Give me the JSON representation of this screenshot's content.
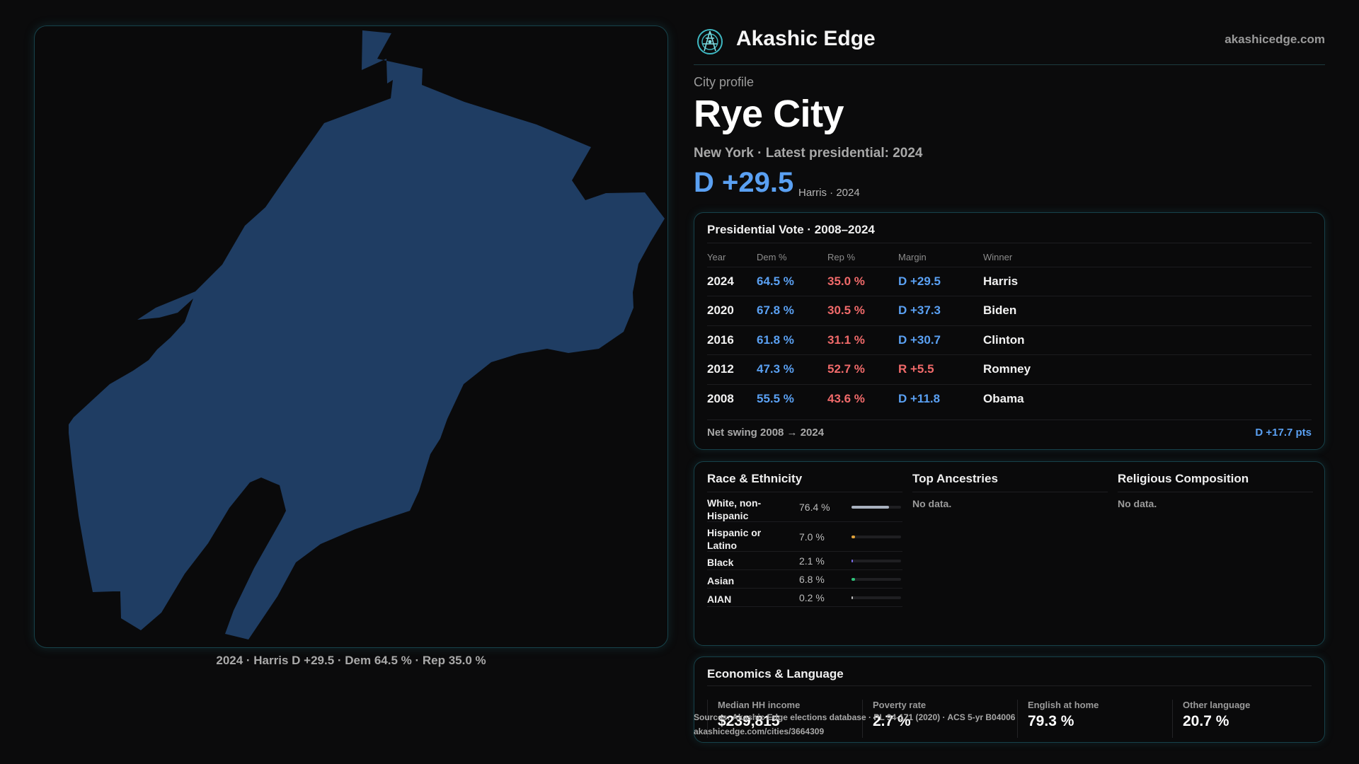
{
  "header": {
    "brand": "Akashic Edge",
    "site": "akashicedge.com",
    "logo_icon": "compass-icon"
  },
  "map": {
    "caption": "2024 · Harris D +29.5 · Dem 64.5 % · Rep 35.0 %",
    "fill_color": "#1f3d63"
  },
  "profile": {
    "eyebrow": "City profile",
    "city": "Rye City",
    "subline": "New York  · Latest presidential: 2024",
    "margin": "D +29.5",
    "margin_note": "Harris · 2024"
  },
  "presidential": {
    "title": "Presidential Vote · 2008–2024",
    "headers": {
      "year": "Year",
      "dem": "Dem %",
      "rep": "Rep %",
      "margin": "Margin",
      "winner": "Winner"
    },
    "rows": [
      {
        "year": "2024",
        "dem": "64.5 %",
        "rep": "35.0 %",
        "margin": "D +29.5",
        "party": "D",
        "winner": "Harris"
      },
      {
        "year": "2020",
        "dem": "67.8 %",
        "rep": "30.5 %",
        "margin": "D +37.3",
        "party": "D",
        "winner": "Biden"
      },
      {
        "year": "2016",
        "dem": "61.8 %",
        "rep": "31.1 %",
        "margin": "D +30.7",
        "party": "D",
        "winner": "Clinton"
      },
      {
        "year": "2012",
        "dem": "47.3 %",
        "rep": "52.7 %",
        "margin": "R +5.5",
        "party": "R",
        "winner": "Romney"
      },
      {
        "year": "2008",
        "dem": "55.5 %",
        "rep": "43.6 %",
        "margin": "D +11.8",
        "party": "D",
        "winner": "Obama"
      }
    ],
    "swing_label": "Net swing 2008 → 2024",
    "swing_value": "D +17.7 pts"
  },
  "race": {
    "title": "Race & Ethnicity",
    "rows": [
      {
        "label": "White, non-Hispanic",
        "pct": "76.4 %",
        "value": 0.764,
        "color": "#a9b1bf",
        "lines": 2
      },
      {
        "label": "Hispanic or Latino",
        "pct": "7.0 %",
        "value": 0.07,
        "color": "#e0a23a",
        "lines": 2
      },
      {
        "label": "Black",
        "pct": "2.1 %",
        "value": 0.021,
        "color": "#7b6cf0",
        "lines": 1
      },
      {
        "label": "Asian",
        "pct": "6.8 %",
        "value": 0.068,
        "color": "#2fc27a",
        "lines": 1
      },
      {
        "label": "AIAN",
        "pct": "0.2 %",
        "value": 0.002,
        "color": "#c0c0c0",
        "lines": 1
      }
    ]
  },
  "ancestries": {
    "title": "Top Ancestries",
    "empty": "No data."
  },
  "religion": {
    "title": "Religious Composition",
    "empty": "No data."
  },
  "economics": {
    "title": "Economics & Language",
    "stats": [
      {
        "label": "Median HH income",
        "value": "$239,815"
      },
      {
        "label": "Poverty rate",
        "value": "2.7 %"
      },
      {
        "label": "English at home",
        "value": "79.3 %"
      },
      {
        "label": "Other language",
        "value": "20.7 %"
      }
    ]
  },
  "footer": {
    "sources": "Sources: Akashic Edge elections database · PL 94-171 (2020) · ACS 5-yr B04006",
    "url": "akashicedge.com/cities/3664309"
  }
}
